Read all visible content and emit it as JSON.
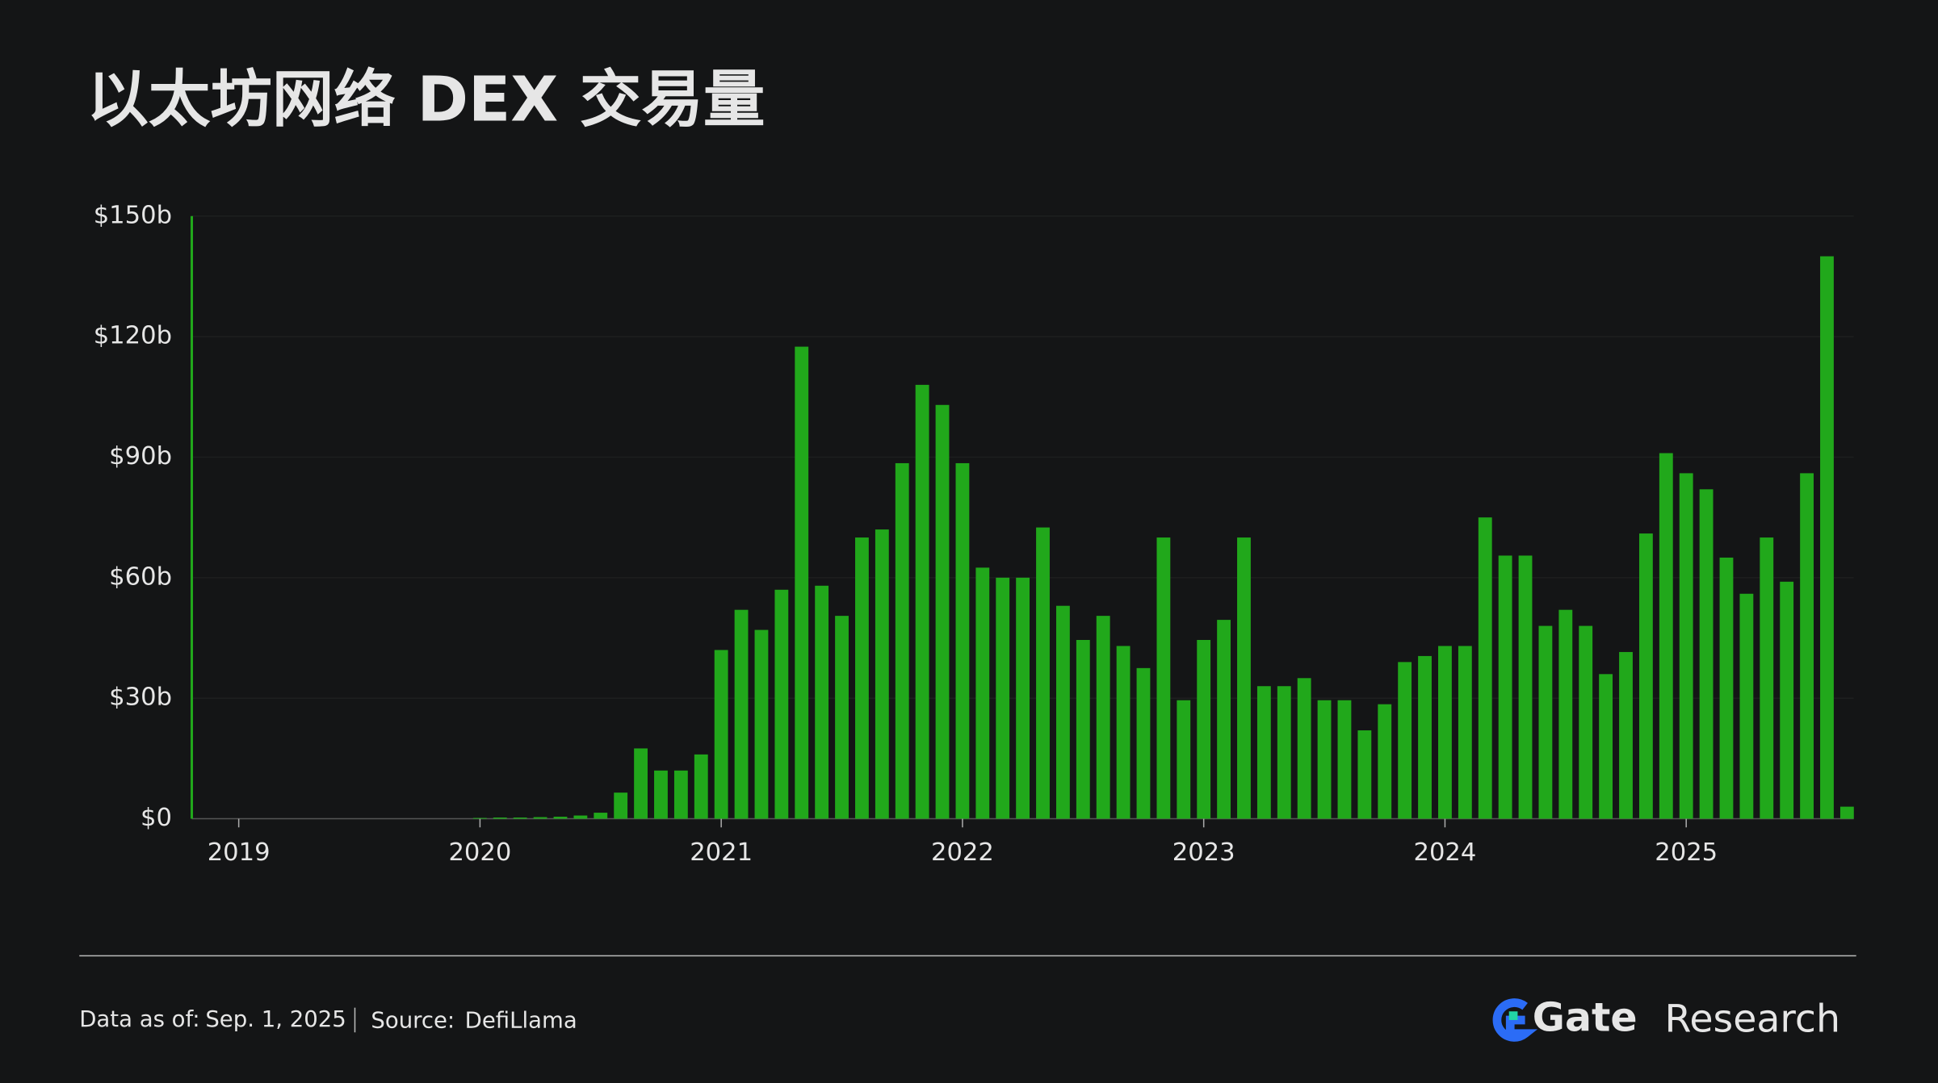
{
  "chart_data": {
    "type": "bar",
    "title": "以太坊网络 DEX 交易量",
    "categories": [
      "2019",
      null,
      null,
      null,
      null,
      null,
      null,
      null,
      null,
      null,
      null,
      null,
      "2020",
      null,
      null,
      null,
      null,
      null,
      null,
      null,
      null,
      null,
      null,
      null,
      "2021",
      null,
      null,
      null,
      null,
      null,
      null,
      null,
      null,
      null,
      null,
      null,
      "2022",
      null,
      null,
      null,
      null,
      null,
      null,
      null,
      null,
      null,
      null,
      null,
      "2023",
      null,
      null,
      null,
      null,
      null,
      null,
      null,
      null,
      null,
      null,
      null,
      "2024",
      null,
      null,
      null,
      null,
      null,
      null,
      null,
      null,
      null,
      null,
      null,
      "2025",
      null,
      null,
      null,
      null,
      null,
      null,
      null,
      null
    ],
    "values": [
      0,
      0,
      0,
      0,
      0,
      0,
      0,
      0,
      0,
      0,
      0,
      0,
      0.2,
      0.3,
      0.3,
      0.4,
      0.5,
      0.8,
      1.5,
      6.5,
      17.5,
      12,
      12,
      16,
      42,
      52,
      47,
      57,
      117.5,
      58,
      50.5,
      70,
      72,
      88.5,
      108,
      103,
      88.5,
      62.5,
      60,
      60,
      72.5,
      53,
      44.5,
      50.5,
      43,
      37.5,
      70,
      29.5,
      44.5,
      49.5,
      70,
      33,
      33,
      35,
      29.5,
      29.5,
      22,
      28.5,
      39,
      40.5,
      43,
      43,
      75,
      65.5,
      65.5,
      48,
      52,
      48,
      36,
      41.5,
      71,
      91,
      86,
      82,
      65,
      56,
      70,
      59,
      86,
      140,
      3
    ],
    "color": "#21a81b",
    "ylim": [
      0,
      150
    ],
    "yticks": [
      {
        "value": 0,
        "label": "$0"
      },
      {
        "value": 30,
        "label": "$30b"
      },
      {
        "value": 60,
        "label": "$60b"
      },
      {
        "value": 90,
        "label": "$90b"
      },
      {
        "value": 120,
        "label": "$120b"
      },
      {
        "value": 150,
        "label": "$150b"
      }
    ],
    "grid": true
  },
  "footer": {
    "date_label": "Data as of:",
    "date": "Sep. 1, 2025",
    "source_label": "Source:",
    "source": "DefiLlama"
  },
  "logo": {
    "brand": "Gate",
    "suffix": "Research"
  }
}
